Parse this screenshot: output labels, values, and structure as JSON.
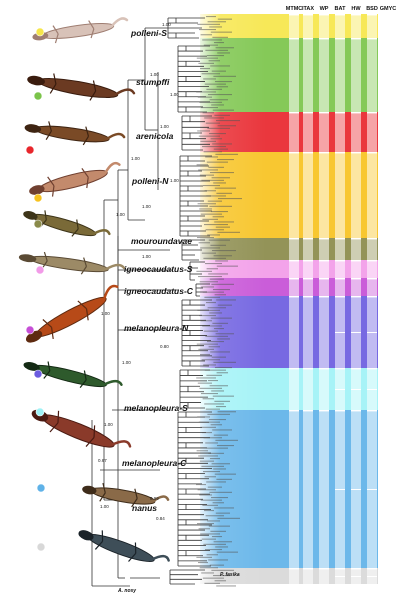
{
  "clades": [
    {
      "label": "polleni-S",
      "color": "#f6e64a"
    },
    {
      "label": "stumpffi",
      "color": "#7bc44a"
    },
    {
      "label": "arenicola",
      "color": "#e8262c"
    },
    {
      "label": "polleni-N",
      "color": "#f7c21f"
    },
    {
      "label": "mouroundavae",
      "color": "#8a8a4a"
    },
    {
      "label": "igneocaudatus-S",
      "color": "#f29be8"
    },
    {
      "label": "igneocaudatus-C",
      "color": "#c64fd6"
    },
    {
      "label": "melanopleura-N",
      "color": "#6b5ce0"
    },
    {
      "label": "melanopleura-S",
      "color": "#9ff2f6"
    },
    {
      "label": "melanopleura-C",
      "color": "#5fb2e8"
    },
    {
      "label": "nanus",
      "color": "#d8d8d8"
    }
  ],
  "methods": [
    "MTMC",
    "ITAX",
    "WP",
    "BAT",
    "HW",
    "BSD",
    "GMYC"
  ],
  "outgroups": [
    "A. nosy",
    "P. fasika"
  ],
  "support_values": [
    "1.00",
    "1.00",
    "1.00",
    "1.00",
    "1.00",
    "1.00",
    "1.00",
    "1.00",
    "0.80",
    "1.00",
    "0.67",
    "1.00",
    "1.00",
    "0.99",
    "0.84",
    "1.00",
    "1.00"
  ],
  "colors": {
    "tree_line": "#333333",
    "text": "#111111"
  }
}
